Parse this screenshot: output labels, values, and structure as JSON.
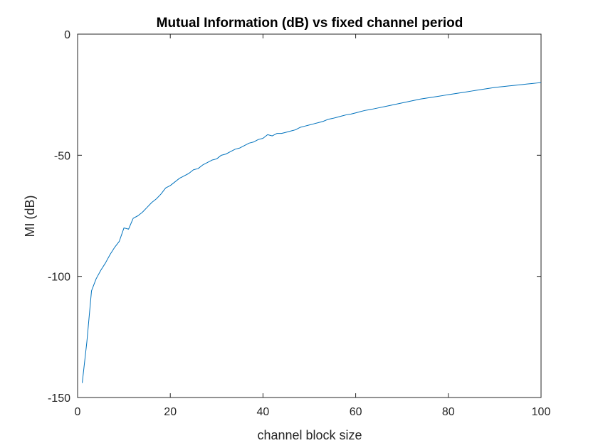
{
  "chart_data": {
    "type": "line",
    "title": "Mutual Information (dB) vs fixed channel period",
    "xlabel": "channel block size",
    "ylabel": "MI (dB)",
    "xlim": [
      0,
      100
    ],
    "ylim": [
      -150,
      0
    ],
    "xticks": [
      0,
      20,
      40,
      60,
      80,
      100
    ],
    "yticks": [
      0,
      -50,
      -100,
      -150
    ],
    "xtick_labels": [
      "0",
      "20",
      "40",
      "60",
      "80",
      "100"
    ],
    "ytick_labels": [
      "0",
      "-50",
      "-100",
      "-150"
    ],
    "grid": false,
    "box": true,
    "series": [
      {
        "color": "#0072BD",
        "x": [
          1,
          2,
          3,
          4,
          5,
          6,
          7,
          8,
          9,
          10,
          11,
          12,
          13,
          14,
          15,
          16,
          17,
          18,
          19,
          20,
          21,
          22,
          23,
          24,
          25,
          26,
          27,
          28,
          29,
          30,
          31,
          32,
          33,
          34,
          35,
          36,
          37,
          38,
          39,
          40,
          41,
          42,
          43,
          44,
          45,
          46,
          47,
          48,
          49,
          50,
          51,
          52,
          53,
          54,
          55,
          56,
          57,
          58,
          59,
          60,
          61,
          62,
          63,
          64,
          65,
          66,
          67,
          68,
          69,
          70,
          71,
          72,
          73,
          74,
          75,
          76,
          77,
          78,
          79,
          80,
          81,
          82,
          83,
          84,
          85,
          86,
          87,
          88,
          89,
          90,
          91,
          92,
          93,
          94,
          95,
          96,
          97,
          98,
          99,
          100
        ],
        "y": [
          -144,
          -127,
          -106,
          -101,
          -97.5,
          -94.5,
          -91,
          -88,
          -85.5,
          -80,
          -80.5,
          -76,
          -75,
          -73.5,
          -71.5,
          -69.5,
          -68,
          -66,
          -63.5,
          -62.5,
          -61,
          -59.5,
          -58.5,
          -57.5,
          -56,
          -55.5,
          -54,
          -53,
          -52,
          -51.5,
          -50,
          -49.5,
          -48.5,
          -47.5,
          -47,
          -46,
          -45,
          -44.5,
          -43.5,
          -43,
          -41.5,
          -42,
          -41,
          -41,
          -40.5,
          -40,
          -39.5,
          -38.5,
          -38,
          -37.5,
          -37,
          -36.5,
          -36,
          -35.2,
          -34.8,
          -34.3,
          -33.8,
          -33.3,
          -33,
          -32.5,
          -32,
          -31.5,
          -31.2,
          -30.8,
          -30.4,
          -30,
          -29.6,
          -29.2,
          -28.8,
          -28.4,
          -28,
          -27.6,
          -27.2,
          -26.8,
          -26.5,
          -26.2,
          -25.9,
          -25.6,
          -25.3,
          -25,
          -24.7,
          -24.4,
          -24.1,
          -23.8,
          -23.5,
          -23.2,
          -22.9,
          -22.6,
          -22.3,
          -22,
          -21.8,
          -21.6,
          -21.4,
          -21.2,
          -21,
          -20.8,
          -20.6,
          -20.4,
          -20.2,
          -20
        ]
      }
    ]
  }
}
